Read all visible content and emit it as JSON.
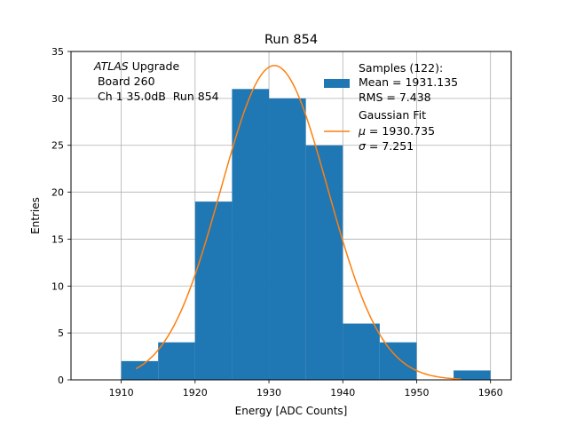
{
  "chart_data": {
    "type": "bar",
    "title": "Run 854",
    "xlabel": "Energy [ADC Counts]",
    "ylabel": "Entries",
    "xlim": [
      1903.2,
      1962.8
    ],
    "ylim": [
      0,
      35
    ],
    "xticks": [
      1910,
      1920,
      1930,
      1940,
      1950,
      1960
    ],
    "yticks": [
      0,
      5,
      10,
      15,
      20,
      25,
      30,
      35
    ],
    "grid": true,
    "legend_position": "upper right",
    "bin_edges": [
      1910,
      1915,
      1920,
      1925,
      1930,
      1935,
      1940,
      1945,
      1950,
      1955,
      1960
    ],
    "histogram": [
      2,
      4,
      19,
      31,
      30,
      25,
      6,
      4,
      0,
      1
    ],
    "bar_color": "#1f77b4",
    "fit": {
      "type": "gaussian",
      "amplitude": 33.5,
      "mu": 1930.735,
      "sigma": 7.251,
      "x_range": [
        1912,
        1956
      ],
      "color": "#ff7f0e"
    },
    "annotation": {
      "line1_italic": "ATLAS",
      "line1_rest": " Upgrade",
      "line2": " Board 260",
      "line3": " Ch 1 35.0dB  Run 854"
    },
    "legend": {
      "samples": [
        "Samples (122):",
        "Mean = 1931.135",
        "RMS = 7.438"
      ],
      "fit_title": "Gaussian Fit",
      "mu_symbol": "μ",
      "mu_text": " = 1930.735",
      "sigma_symbol": "σ",
      "sigma_text": " = 7.251"
    }
  }
}
